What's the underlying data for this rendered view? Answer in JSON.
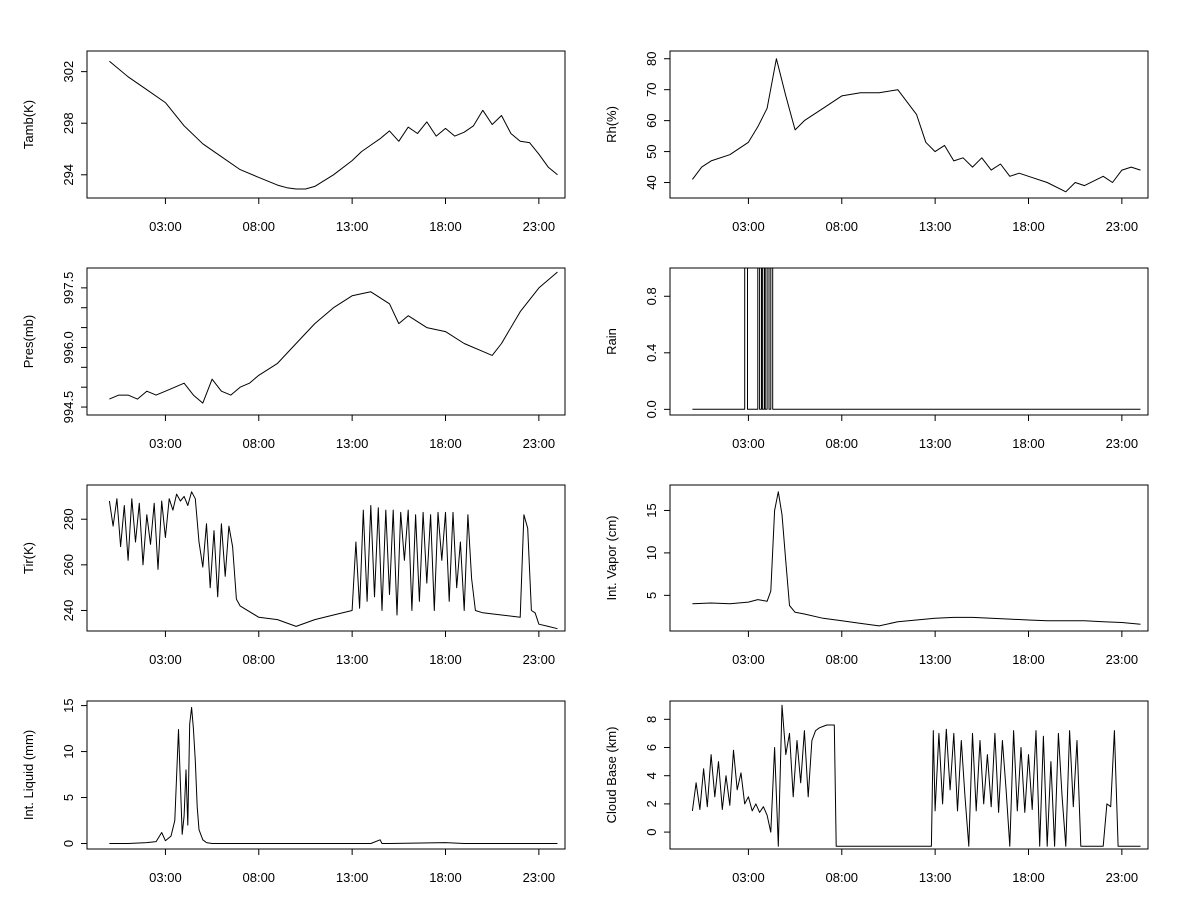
{
  "chart_data": [
    {
      "type": "line",
      "ylabel": "Tamb(K)",
      "xlabel": "",
      "xlim": [
        -1.2,
        24.4
      ],
      "ylim": [
        292.2,
        303.6
      ],
      "x_ticks": [
        3,
        8,
        13,
        18,
        23
      ],
      "x_tick_labels": [
        "03:00",
        "08:00",
        "13:00",
        "18:00",
        "23:00"
      ],
      "y_ticks": [
        294,
        298,
        302
      ],
      "y_tick_labels": [
        "294",
        "298",
        "302"
      ],
      "series": [
        {
          "name": "Tamb",
          "x": [
            0,
            1,
            2,
            3,
            4,
            5,
            6,
            7,
            8,
            9,
            9.5,
            10,
            10.5,
            11,
            12,
            13,
            13.5,
            14,
            14.5,
            15,
            15.5,
            16,
            16.5,
            17,
            17.5,
            18,
            18.5,
            19,
            19.5,
            20,
            20.5,
            21,
            21.5,
            22,
            22.5,
            23,
            23.5,
            24
          ],
          "y": [
            302.8,
            301.6,
            300.6,
            299.6,
            297.8,
            296.4,
            295.4,
            294.4,
            293.8,
            293.2,
            293.0,
            292.9,
            292.9,
            293.1,
            294.0,
            295.1,
            295.8,
            296.3,
            296.8,
            297.4,
            296.6,
            297.7,
            297.2,
            298.1,
            297.0,
            297.6,
            297.0,
            297.3,
            297.8,
            299.0,
            297.9,
            298.6,
            297.2,
            296.6,
            296.5,
            295.6,
            294.6,
            294.0
          ]
        }
      ]
    },
    {
      "type": "line",
      "ylabel": "Rh(%)",
      "xlabel": "",
      "xlim": [
        -1.2,
        24.4
      ],
      "ylim": [
        35.0,
        82.5
      ],
      "x_ticks": [
        3,
        8,
        13,
        18,
        23
      ],
      "x_tick_labels": [
        "03:00",
        "08:00",
        "13:00",
        "18:00",
        "23:00"
      ],
      "y_ticks": [
        40,
        50,
        60,
        70,
        80
      ],
      "y_tick_labels": [
        "40",
        "50",
        "60",
        "70",
        "80"
      ],
      "series": [
        {
          "name": "Rh",
          "x": [
            0,
            0.5,
            1,
            2,
            3,
            3.5,
            4,
            4.5,
            5,
            5.5,
            6,
            7,
            8,
            9,
            10,
            11,
            12,
            12.5,
            13,
            13.5,
            14,
            14.5,
            15,
            15.5,
            16,
            16.5,
            17,
            17.5,
            18,
            19,
            20,
            20.5,
            21,
            22,
            22.5,
            23,
            23.5,
            24
          ],
          "y": [
            41,
            45,
            47,
            49,
            53,
            58,
            64,
            80,
            68,
            57,
            60,
            64,
            68,
            69,
            69,
            70,
            62,
            53,
            50,
            52,
            47,
            48,
            45,
            48,
            44,
            46,
            42,
            43,
            42,
            40,
            37,
            40,
            39,
            42,
            40,
            44,
            45,
            44
          ]
        }
      ]
    },
    {
      "type": "line",
      "ylabel": "Pres(mb)",
      "xlabel": "",
      "xlim": [
        -1.2,
        24.4
      ],
      "ylim": [
        994.3,
        998.0
      ],
      "x_ticks": [
        3,
        8,
        13,
        18,
        23
      ],
      "x_tick_labels": [
        "03:00",
        "08:00",
        "13:00",
        "18:00",
        "23:00"
      ],
      "y_ticks": [
        994.5,
        995.0,
        995.5,
        996.0,
        996.5,
        997.0,
        997.5
      ],
      "y_tick_labels": [
        "994.5",
        "",
        "",
        "996.0",
        "",
        "",
        "997.5"
      ],
      "series": [
        {
          "name": "Pres",
          "x": [
            0,
            0.5,
            1,
            1.5,
            2,
            2.5,
            3,
            3.5,
            4,
            4.5,
            5,
            5.5,
            6,
            6.5,
            7,
            7.5,
            8,
            9,
            10,
            11,
            12,
            13,
            14,
            15,
            15.5,
            16,
            17,
            18,
            19,
            20,
            20.5,
            21,
            22,
            23,
            24
          ],
          "y": [
            994.7,
            994.8,
            994.8,
            994.7,
            994.9,
            994.8,
            994.9,
            995.0,
            995.1,
            994.8,
            994.6,
            995.2,
            994.9,
            994.8,
            995.0,
            995.1,
            995.3,
            995.6,
            996.1,
            996.6,
            997.0,
            997.3,
            997.4,
            997.1,
            996.6,
            996.8,
            996.5,
            996.4,
            996.1,
            995.9,
            995.8,
            996.1,
            996.9,
            997.5,
            997.9
          ]
        }
      ]
    },
    {
      "type": "line",
      "ylabel": "Rain",
      "xlabel": "",
      "xlim": [
        -1.2,
        24.4
      ],
      "ylim": [
        -0.04,
        1.0
      ],
      "x_ticks": [
        3,
        8,
        13,
        18,
        23
      ],
      "x_tick_labels": [
        "03:00",
        "08:00",
        "13:00",
        "18:00",
        "23:00"
      ],
      "y_ticks": [
        0.0,
        0.4,
        0.8
      ],
      "y_tick_labels": [
        "0.0",
        "0.4",
        "0.8"
      ],
      "series": [
        {
          "name": "Rain",
          "x": [
            0,
            2.8,
            2.8,
            2.95,
            2.95,
            3.5,
            3.5,
            3.6,
            3.6,
            3.7,
            3.7,
            3.75,
            3.75,
            3.85,
            3.85,
            3.9,
            3.9,
            4.0,
            4.0,
            4.1,
            4.1,
            4.2,
            4.2,
            4.3,
            4.3,
            5.0,
            5.0,
            24
          ],
          "y": [
            0,
            0,
            1,
            1,
            0,
            0,
            1,
            1,
            0,
            0,
            1,
            1,
            0,
            0,
            1,
            1,
            0,
            0,
            1,
            1,
            0,
            0,
            1,
            1,
            0,
            0,
            0,
            0
          ]
        }
      ]
    },
    {
      "type": "line",
      "ylabel": "Tir(K)",
      "xlabel": "",
      "xlim": [
        -1.2,
        24.4
      ],
      "ylim": [
        231.0,
        295.0
      ],
      "x_ticks": [
        3,
        8,
        13,
        18,
        23
      ],
      "x_tick_labels": [
        "03:00",
        "08:00",
        "13:00",
        "18:00",
        "23:00"
      ],
      "y_ticks": [
        240,
        260,
        280
      ],
      "y_tick_labels": [
        "240",
        "260",
        "280"
      ],
      "series": [
        {
          "name": "Tir",
          "x": [
            0,
            0.2,
            0.4,
            0.6,
            0.8,
            1.0,
            1.2,
            1.4,
            1.6,
            1.8,
            2.0,
            2.2,
            2.4,
            2.6,
            2.8,
            3.0,
            3.2,
            3.4,
            3.6,
            3.8,
            4.0,
            4.2,
            4.4,
            4.6,
            4.8,
            5.0,
            5.2,
            5.4,
            5.6,
            5.8,
            6.0,
            6.2,
            6.4,
            6.6,
            6.8,
            7.0,
            8.0,
            9.0,
            10.0,
            11.0,
            12.0,
            13.0,
            13.2,
            13.4,
            13.6,
            13.8,
            14.0,
            14.2,
            14.4,
            14.6,
            14.8,
            15.0,
            15.2,
            15.4,
            15.6,
            15.8,
            16.0,
            16.2,
            16.4,
            16.6,
            16.8,
            17.0,
            17.2,
            17.4,
            17.6,
            17.8,
            18.0,
            18.2,
            18.4,
            18.6,
            18.8,
            19.0,
            19.2,
            19.4,
            19.6,
            20.0,
            21.0,
            22.0,
            22.2,
            22.4,
            22.6,
            22.8,
            23.0,
            23.5,
            24.0
          ],
          "y": [
            288,
            277,
            289,
            268,
            286,
            262,
            289,
            270,
            287,
            260,
            282,
            269,
            287,
            258,
            288,
            272,
            289,
            284,
            291,
            288,
            290,
            286,
            292,
            289,
            270,
            259,
            278,
            250,
            275,
            246,
            278,
            255,
            277,
            268,
            245,
            242,
            237,
            236,
            233,
            236,
            238,
            240,
            270,
            241,
            284,
            244,
            286,
            246,
            285,
            240,
            284,
            247,
            284,
            238,
            283,
            262,
            284,
            240,
            282,
            244,
            283,
            252,
            282,
            240,
            283,
            262,
            283,
            244,
            283,
            250,
            270,
            240,
            282,
            254,
            240,
            239,
            238,
            237,
            282,
            276,
            240,
            239,
            234,
            233,
            232
          ]
        }
      ]
    },
    {
      "type": "line",
      "ylabel": "Int. Vapor (cm)",
      "xlabel": "",
      "xlim": [
        -1.2,
        24.4
      ],
      "ylim": [
        0.8,
        18.0
      ],
      "x_ticks": [
        3,
        8,
        13,
        18,
        23
      ],
      "x_tick_labels": [
        "03:00",
        "08:00",
        "13:00",
        "18:00",
        "23:00"
      ],
      "y_ticks": [
        5,
        10,
        15
      ],
      "y_tick_labels": [
        "5",
        "10",
        "15"
      ],
      "series": [
        {
          "name": "Int. Vapor",
          "x": [
            0,
            1,
            2,
            3,
            3.5,
            4,
            4.2,
            4.4,
            4.6,
            4.8,
            5.0,
            5.2,
            5.5,
            6,
            7,
            8,
            9,
            10,
            11,
            12,
            13,
            14,
            15,
            16,
            17,
            18,
            19,
            20,
            21,
            22,
            23,
            24
          ],
          "y": [
            4.0,
            4.1,
            4.0,
            4.2,
            4.5,
            4.3,
            5.5,
            15.0,
            17.2,
            14.5,
            9.0,
            3.8,
            3.0,
            2.8,
            2.3,
            2.0,
            1.7,
            1.4,
            1.9,
            2.1,
            2.3,
            2.4,
            2.4,
            2.3,
            2.2,
            2.1,
            2.0,
            2.0,
            2.0,
            1.9,
            1.8,
            1.6
          ]
        }
      ]
    },
    {
      "type": "line",
      "ylabel": "Int. Liquid (mm)",
      "xlabel": "",
      "xlim": [
        -1.2,
        24.4
      ],
      "ylim": [
        -0.6,
        15.5
      ],
      "x_ticks": [
        3,
        8,
        13,
        18,
        23
      ],
      "x_tick_labels": [
        "03:00",
        "08:00",
        "13:00",
        "18:00",
        "23:00"
      ],
      "y_ticks": [
        0,
        5,
        10,
        15
      ],
      "y_tick_labels": [
        "0",
        "5",
        "10",
        "15"
      ],
      "series": [
        {
          "name": "Int. Liquid",
          "x": [
            0,
            1,
            2,
            2.5,
            2.8,
            3.0,
            3.3,
            3.5,
            3.7,
            3.9,
            4.0,
            4.1,
            4.2,
            4.3,
            4.4,
            4.5,
            4.6,
            4.7,
            4.8,
            5.0,
            5.2,
            5.5,
            6,
            8,
            10,
            12,
            14,
            14.5,
            14.6,
            15,
            18,
            19,
            22,
            24
          ],
          "y": [
            0,
            0,
            0.1,
            0.2,
            1.2,
            0.3,
            0.8,
            2.5,
            12.4,
            1.0,
            3.0,
            8.0,
            2.0,
            13.0,
            14.8,
            12.5,
            9.0,
            4.0,
            1.5,
            0.4,
            0.1,
            0,
            0,
            0,
            0,
            0,
            0,
            0.4,
            0,
            0,
            0.1,
            0,
            0,
            0
          ]
        }
      ]
    },
    {
      "type": "line",
      "ylabel": "Cloud Base (km)",
      "xlabel": "",
      "xlim": [
        -1.2,
        24.4
      ],
      "ylim": [
        -1.2,
        9.3
      ],
      "x_ticks": [
        3,
        8,
        13,
        18,
        23
      ],
      "x_tick_labels": [
        "03:00",
        "08:00",
        "13:00",
        "18:00",
        "23:00"
      ],
      "y_ticks": [
        0,
        2,
        4,
        6,
        8
      ],
      "y_tick_labels": [
        "0",
        "2",
        "4",
        "6",
        "8"
      ],
      "series": [
        {
          "name": "Cloud Base",
          "x": [
            0,
            0.2,
            0.4,
            0.6,
            0.8,
            1.0,
            1.2,
            1.4,
            1.6,
            1.8,
            2.0,
            2.2,
            2.4,
            2.6,
            2.8,
            3.0,
            3.2,
            3.4,
            3.6,
            3.8,
            4.0,
            4.2,
            4.4,
            4.6,
            4.8,
            5.0,
            5.2,
            5.4,
            5.6,
            5.8,
            6.0,
            6.2,
            6.4,
            6.6,
            6.8,
            7.0,
            7.2,
            7.5,
            7.6,
            7.7,
            8.0,
            10.0,
            12.0,
            12.8,
            12.9,
            13.0,
            13.2,
            13.4,
            13.6,
            13.8,
            14.0,
            14.2,
            14.4,
            14.6,
            14.8,
            15.0,
            15.2,
            15.4,
            15.6,
            15.8,
            16.0,
            16.2,
            16.4,
            16.6,
            16.8,
            17.0,
            17.2,
            17.4,
            17.6,
            17.8,
            18.0,
            18.2,
            18.4,
            18.6,
            18.8,
            19.0,
            19.2,
            19.4,
            19.6,
            19.8,
            20.0,
            20.2,
            20.4,
            20.6,
            20.8,
            21.0,
            21.2,
            21.4,
            21.6,
            21.8,
            22.0,
            22.2,
            22.4,
            22.6,
            22.8,
            23.0,
            23.5,
            24.0
          ],
          "y": [
            1.5,
            3.5,
            1.6,
            4.5,
            1.8,
            5.5,
            2.5,
            5.0,
            1.6,
            4.0,
            1.9,
            5.8,
            3.0,
            4.2,
            2.0,
            2.5,
            1.5,
            2.0,
            1.4,
            1.8,
            1.2,
            0.0,
            6.0,
            -1.0,
            9.0,
            5.5,
            7.0,
            2.5,
            6.5,
            3.5,
            7.2,
            2.5,
            6.5,
            7.2,
            7.4,
            7.5,
            7.6,
            7.6,
            7.6,
            -1.0,
            -1.0,
            -1.0,
            -1.0,
            -1.0,
            7.2,
            1.5,
            7.0,
            2.0,
            7.3,
            3.0,
            7.0,
            1.5,
            6.5,
            2.5,
            -1.0,
            7.0,
            1.5,
            6.5,
            2.0,
            5.5,
            1.8,
            7.0,
            1.4,
            6.5,
            3.0,
            -1.0,
            7.2,
            1.5,
            6.0,
            1.4,
            5.5,
            1.6,
            7.2,
            -1.0,
            6.8,
            -1.0,
            5.0,
            -1.0,
            7.0,
            2.5,
            -1.0,
            7.2,
            1.8,
            6.5,
            -1.0,
            -1.0,
            -1.0,
            -1.0,
            -1.0,
            -1.0,
            -1.0,
            2.0,
            1.8,
            7.2,
            -1.0,
            -1.0,
            -1.0,
            -1.0
          ]
        }
      ]
    }
  ]
}
